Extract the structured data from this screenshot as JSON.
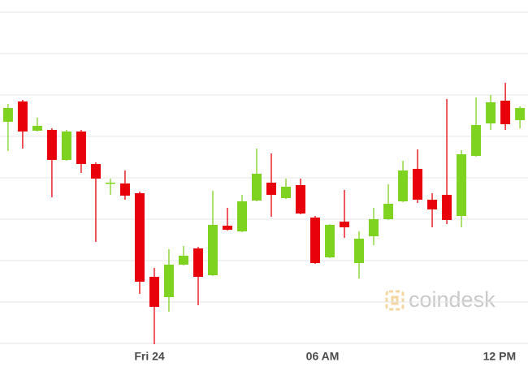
{
  "chart_data": {
    "type": "candlestick",
    "watermark": "coindesk",
    "x": [
      0,
      1,
      2,
      3,
      4,
      5,
      6,
      7,
      8,
      9,
      10,
      11,
      12,
      13,
      14,
      15,
      16,
      17,
      18,
      19,
      20,
      21,
      22,
      23,
      24,
      25,
      26,
      27,
      28,
      29,
      30,
      31,
      32,
      33,
      34,
      35
    ],
    "open": [
      273,
      298,
      262,
      263,
      226,
      261,
      221,
      197,
      197,
      185,
      82,
      57,
      97,
      117,
      84,
      145,
      138,
      176,
      198,
      179,
      195,
      155,
      106,
      150,
      99,
      132,
      153,
      175,
      215,
      177,
      183,
      157,
      231,
      271,
      299,
      275
    ],
    "high": [
      295,
      300,
      278,
      265,
      263,
      263,
      223,
      203,
      213,
      187,
      93,
      116,
      120,
      119,
      188,
      167,
      183,
      240,
      234,
      203,
      203,
      157,
      147,
      189,
      138,
      167,
      196,
      225,
      239,
      185,
      301,
      238,
      303,
      306,
      321,
      292
    ],
    "low": [
      237,
      240,
      261,
      180,
      225,
      210,
      125,
      183,
      177,
      61,
      -1,
      39,
      96,
      47,
      83,
      139,
      137,
      175,
      156,
      178,
      159,
      98,
      105,
      130,
      80,
      121,
      152,
      174,
      173,
      143,
      147,
      143,
      230,
      263,
      263,
      265
    ],
    "close": [
      290,
      261,
      268,
      226,
      261,
      221,
      203,
      198,
      182,
      76,
      45,
      97,
      108,
      82,
      146,
      140,
      175,
      209,
      183,
      193,
      160,
      99,
      146,
      143,
      129,
      153,
      172,
      213,
      177,
      165,
      152,
      233,
      269,
      297,
      270,
      290
    ],
    "up_color": "#7ed321",
    "down_color": "#e8000b",
    "xlim": [
      -0.55,
      35.55
    ],
    "xticks": [
      {
        "value": 9.67,
        "label": "Fri 24"
      },
      {
        "value": 21.5,
        "label": "06 AM"
      },
      {
        "value": 33.6,
        "label": "12 PM"
      }
    ],
    "ylim": [
      -17,
      423
    ],
    "yticks": [
      0,
      51,
      102,
      153,
      204,
      255,
      306,
      357,
      408
    ],
    "grid": true
  }
}
